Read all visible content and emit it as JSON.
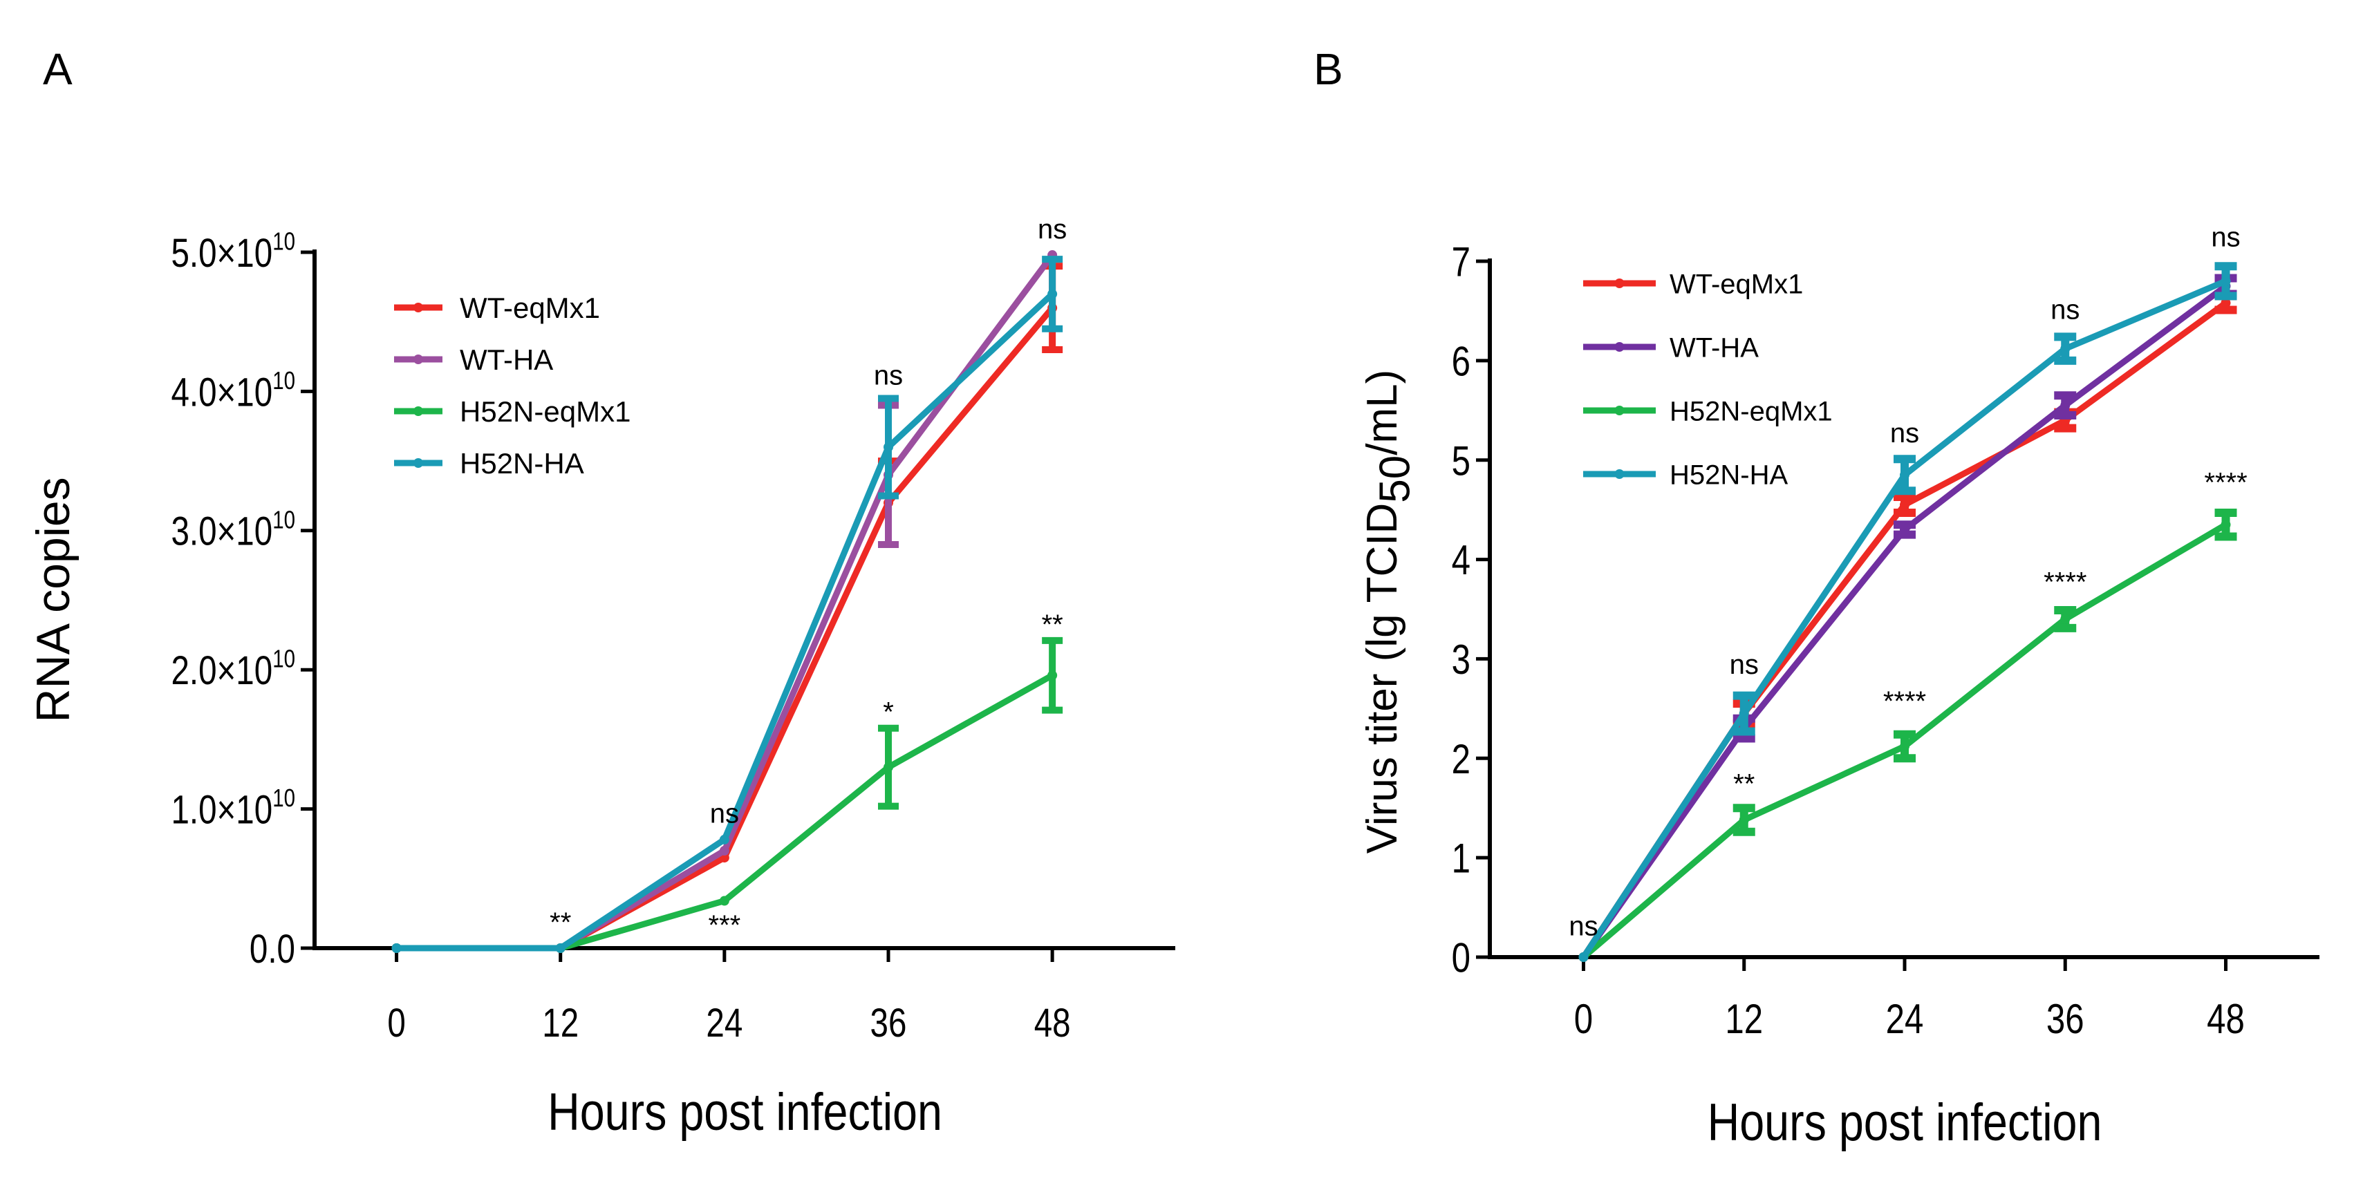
{
  "panels": [
    {
      "label": "A",
      "chart_data": {
        "type": "line",
        "title": "",
        "xlabel": "Hours post infection",
        "ylabel": "RNA copies",
        "x": [
          0,
          12,
          24,
          36,
          48
        ],
        "xlim": [
          -6,
          57
        ],
        "ylim": [
          0,
          50000000000
        ],
        "yticks": [
          0,
          10000000000,
          20000000000,
          30000000000,
          40000000000,
          50000000000
        ],
        "ytick_labels": [
          {
            "mant": "0.0",
            "exp": ""
          },
          {
            "mant": "1.0",
            "exp": "10"
          },
          {
            "mant": "2.0",
            "exp": "10"
          },
          {
            "mant": "3.0",
            "exp": "10"
          },
          {
            "mant": "4.0",
            "exp": "10"
          },
          {
            "mant": "5.0",
            "exp": "10"
          }
        ],
        "ytick_mult": "×10",
        "legend": "top-left",
        "series": [
          {
            "name": "WT-eqMx1",
            "color": "#ee2a24",
            "values": [
              0,
              0,
              6500000000,
              32000000000,
              46000000000
            ],
            "errors": [
              0,
              0,
              0,
              3000000000,
              3000000000
            ]
          },
          {
            "name": "WT-HA",
            "color": "#9b4f9f",
            "values": [
              0,
              0,
              7000000000,
              34000000000,
              49800000000
            ],
            "errors": [
              0,
              0,
              0,
              5000000000,
              0
            ]
          },
          {
            "name": "H52N-eqMx1",
            "color": "#1db54a",
            "values": [
              0,
              0,
              3400000000,
              13000000000,
              19600000000
            ],
            "errors": [
              0,
              0,
              0,
              2800000000,
              2500000000
            ]
          },
          {
            "name": "H52N-HA",
            "color": "#1a9bb5",
            "values": [
              0,
              0,
              7800000000,
              36000000000,
              47000000000
            ],
            "errors": [
              0,
              0,
              0,
              3500000000,
              2500000000
            ]
          }
        ],
        "annotations": [
          {
            "x": 12,
            "y": 1200000000,
            "text": "**"
          },
          {
            "x": 24,
            "y": 9000000000,
            "text": "ns"
          },
          {
            "x": 24,
            "y": 1000000000,
            "text": "***"
          },
          {
            "x": 36,
            "y": 40500000000,
            "text": "ns"
          },
          {
            "x": 36,
            "y": 16300000000,
            "text": "*"
          },
          {
            "x": 48,
            "y": 51000000000,
            "text": "ns"
          },
          {
            "x": 48,
            "y": 22600000000,
            "text": "**"
          }
        ]
      }
    },
    {
      "label": "B",
      "chart_data": {
        "type": "line",
        "title": "",
        "xlabel": "Hours post infection",
        "ylabel_main": "Virus titer (lg TCID",
        "ylabel_sub": "50",
        "ylabel_tail": "/mL)",
        "x": [
          0,
          12,
          24,
          36,
          48
        ],
        "xlim": [
          -7,
          55
        ],
        "ylim": [
          0,
          7
        ],
        "yticks": [
          0,
          1,
          2,
          3,
          4,
          5,
          6,
          7
        ],
        "ytick_labels": [
          {
            "mant": "0",
            "exp": ""
          },
          {
            "mant": "1",
            "exp": ""
          },
          {
            "mant": "2",
            "exp": ""
          },
          {
            "mant": "3",
            "exp": ""
          },
          {
            "mant": "4",
            "exp": ""
          },
          {
            "mant": "5",
            "exp": ""
          },
          {
            "mant": "6",
            "exp": ""
          },
          {
            "mant": "7",
            "exp": ""
          }
        ],
        "ytick_mult": "",
        "legend": "top-left",
        "series": [
          {
            "name": "WT-eqMx1",
            "color": "#ee2a24",
            "values": [
              0,
              2.45,
              4.55,
              5.4,
              6.58
            ],
            "errors": [
              0,
              0.1,
              0.08,
              0.08,
              0.07
            ]
          },
          {
            "name": "WT-HA",
            "color": "#7030a0",
            "values": [
              0,
              2.3,
              4.3,
              5.55,
              6.75
            ],
            "errors": [
              0,
              0.1,
              0.05,
              0.1,
              0.08
            ]
          },
          {
            "name": "H52N-eqMx1",
            "color": "#1db54a",
            "values": [
              0,
              1.38,
              2.12,
              3.4,
              4.35
            ],
            "errors": [
              0,
              0.12,
              0.12,
              0.09,
              0.12
            ]
          },
          {
            "name": "H52N-HA",
            "color": "#1a9bb5",
            "values": [
              0,
              2.45,
              4.85,
              6.12,
              6.8
            ],
            "errors": [
              0,
              0.18,
              0.16,
              0.12,
              0.15
            ]
          }
        ],
        "annotations": [
          {
            "x": 0,
            "y": 0.22,
            "text": "ns"
          },
          {
            "x": 12,
            "y": 2.85,
            "text": "ns"
          },
          {
            "x": 12,
            "y": 1.65,
            "text": "**"
          },
          {
            "x": 24,
            "y": 5.18,
            "text": "ns"
          },
          {
            "x": 24,
            "y": 2.48,
            "text": "****"
          },
          {
            "x": 36,
            "y": 6.42,
            "text": "ns"
          },
          {
            "x": 36,
            "y": 3.68,
            "text": "****"
          },
          {
            "x": 48,
            "y": 7.15,
            "text": "ns"
          },
          {
            "x": 48,
            "y": 4.68,
            "text": "****"
          }
        ]
      }
    }
  ]
}
